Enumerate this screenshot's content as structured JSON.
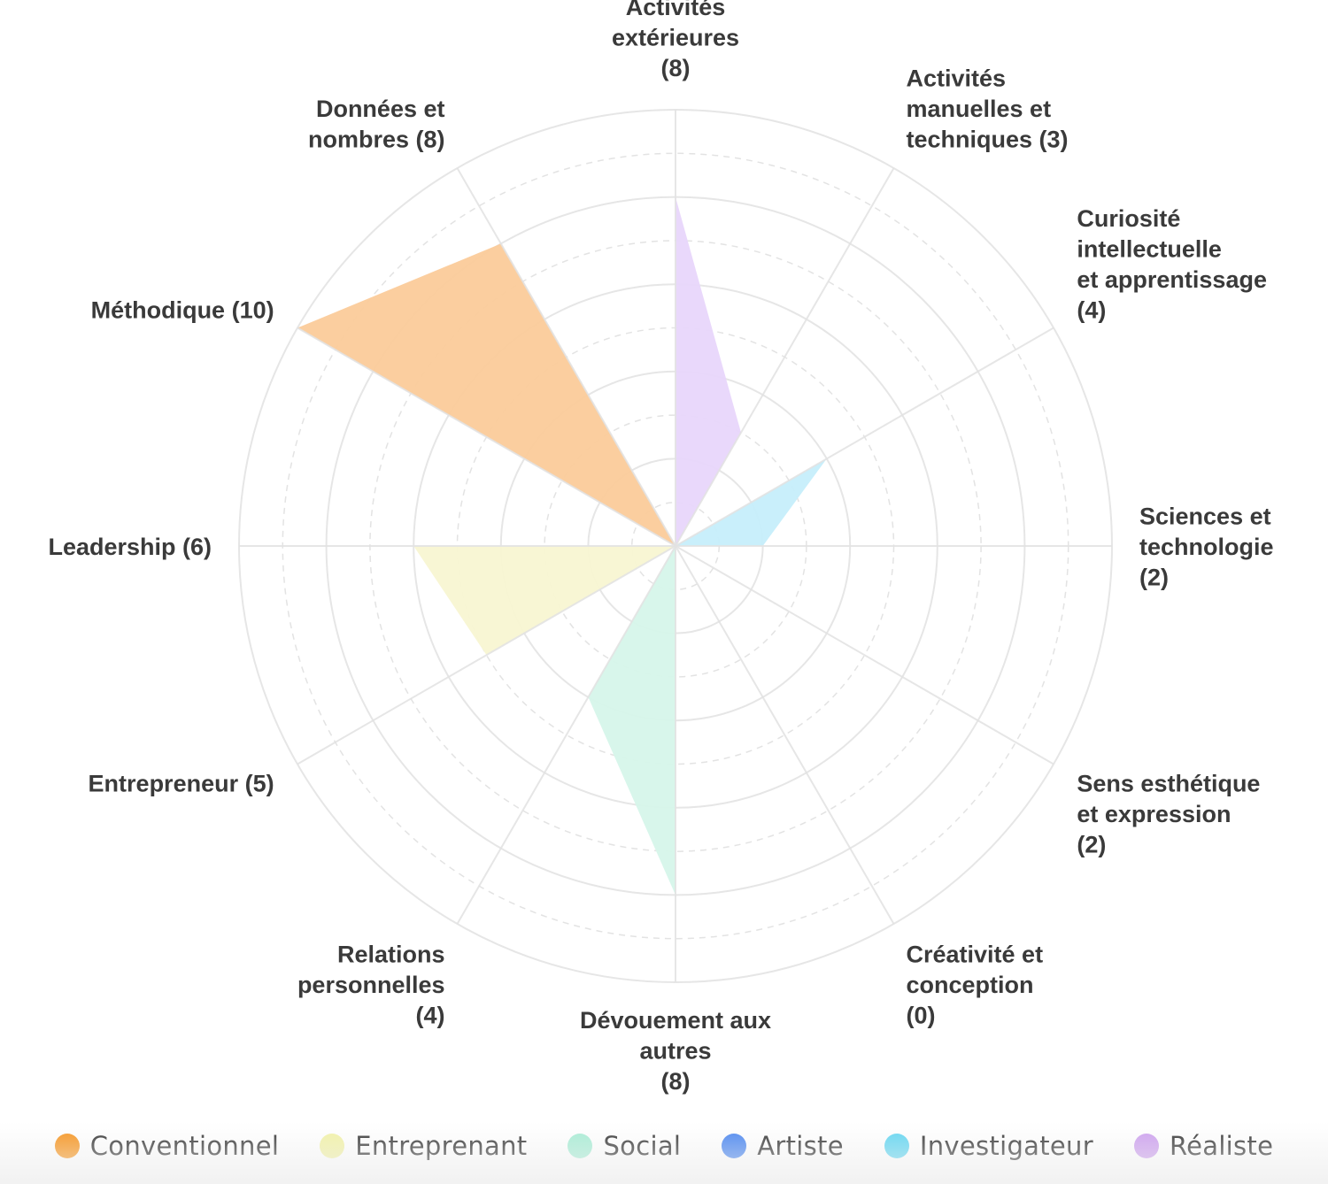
{
  "chart_data": {
    "type": "radar",
    "max_value": 10,
    "ring_count": 5,
    "categories": [
      {
        "label_lines": [
          "Activités",
          "extérieures",
          "(8)"
        ],
        "value": 8,
        "group": "Réaliste"
      },
      {
        "label_lines": [
          "Activités",
          "manuelles et",
          "techniques (3)"
        ],
        "value": 3,
        "group": "Réaliste"
      },
      {
        "label_lines": [
          "Curiosité",
          "intellectuelle",
          "et apprentissage",
          "(4)"
        ],
        "value": 4,
        "group": "Investigateur"
      },
      {
        "label_lines": [
          "Sciences et",
          "technologie",
          "(2)"
        ],
        "value": 2,
        "group": "Investigateur"
      },
      {
        "label_lines": [
          "Sens esthétique",
          "et expression",
          "(2)"
        ],
        "value": 2,
        "group": "Artiste"
      },
      {
        "label_lines": [
          "Créativité et",
          "conception",
          "(0)"
        ],
        "value": 0,
        "group": "Artiste"
      },
      {
        "label_lines": [
          "Dévouement aux",
          "autres",
          "(8)"
        ],
        "value": 8,
        "group": "Social"
      },
      {
        "label_lines": [
          "Relations",
          "personnelles",
          "(4)"
        ],
        "value": 4,
        "group": "Social"
      },
      {
        "label_lines": [
          "Entrepreneur (5)"
        ],
        "value": 5,
        "group": "Entreprenant"
      },
      {
        "label_lines": [
          "Leadership (6)"
        ],
        "value": 6,
        "group": "Entreprenant"
      },
      {
        "label_lines": [
          "Méthodique (10)"
        ],
        "value": 10,
        "group": "Conventionnel"
      },
      {
        "label_lines": [
          "Données et",
          "nombres (8)"
        ],
        "value": 8,
        "group": "Conventionnel"
      }
    ],
    "groups": [
      {
        "name": "Conventionnel",
        "color": "#F7941D",
        "fill": "#FBCB9A"
      },
      {
        "name": "Entreprenant",
        "color": "#F2F2A6",
        "fill": "#F8F6D2"
      },
      {
        "name": "Social",
        "color": "#A8EDD5",
        "fill": "#D6F6EA"
      },
      {
        "name": "Artiste",
        "color": "#4A86F0",
        "fill": "#AFC3F7"
      },
      {
        "name": "Investigateur",
        "color": "#62D6F2",
        "fill": "#C6EEFB"
      },
      {
        "name": "Réaliste",
        "color": "#CDA0EF",
        "fill": "#E8D6FB"
      }
    ]
  },
  "legend": [
    {
      "label": "Conventionnel",
      "color": "#F7941D"
    },
    {
      "label": "Entreprenant",
      "color": "#F2F2A6"
    },
    {
      "label": "Social",
      "color": "#A8EDD5"
    },
    {
      "label": "Artiste",
      "color": "#4A86F0"
    },
    {
      "label": "Investigateur",
      "color": "#62D6F2"
    },
    {
      "label": "Réaliste",
      "color": "#CDA0EF"
    }
  ]
}
